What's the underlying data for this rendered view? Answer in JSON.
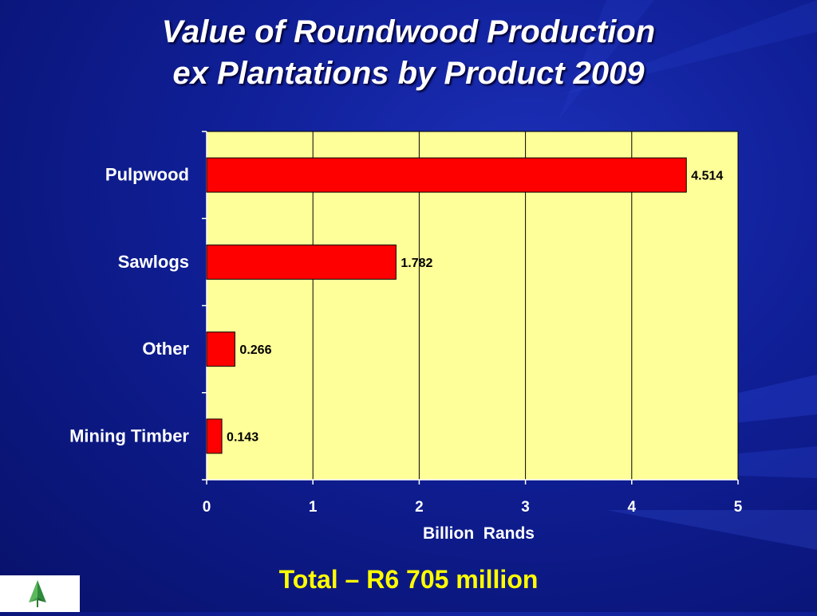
{
  "slide": {
    "title_line1": "Value of Roundwood Production",
    "title_line2": "ex Plantations by Product 2009",
    "total_note": "Total – R6 705 million"
  },
  "colors": {
    "background": "#0f1e94",
    "plot_background": "#ffff99",
    "bar_fill": "#ff0000",
    "title_text": "#ffffff",
    "total_text": "#ffff00"
  },
  "logo": {
    "icon": "tree-arrow-logo-icon"
  },
  "chart_data": {
    "type": "bar",
    "orientation": "horizontal",
    "categories": [
      "Pulpwood",
      "Sawlogs",
      "Other",
      "Mining Timber"
    ],
    "values": [
      4.514,
      1.782,
      0.266,
      0.143
    ],
    "data_labels": [
      "4.514",
      "1.782",
      "0.266",
      "0.143"
    ],
    "xlabel": "Billion  Rands",
    "ylabel": "",
    "xlim": [
      0,
      5
    ],
    "x_ticks": [
      0,
      1,
      2,
      3,
      4,
      5
    ],
    "grid": "vertical",
    "legend": "none"
  }
}
